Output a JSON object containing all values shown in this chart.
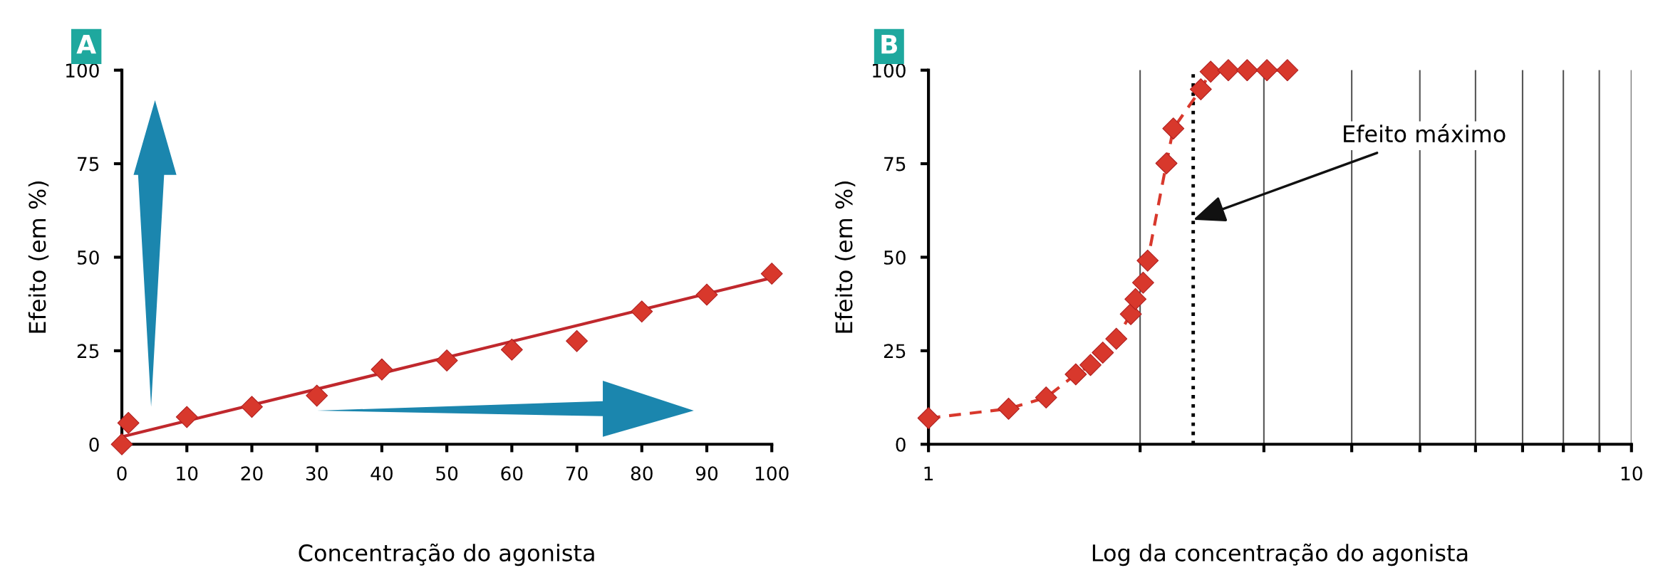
{
  "chart_data": [
    {
      "type": "scatter",
      "title": "A",
      "xlabel": "Concentração do agonista",
      "ylabel": "Efeito (em %)",
      "xlim": [
        0,
        100
      ],
      "xticks": [
        0,
        10,
        20,
        30,
        40,
        50,
        60,
        70,
        80,
        90,
        100
      ],
      "ylim": [
        0,
        100
      ],
      "yticks": [
        0,
        25,
        50,
        75,
        100
      ],
      "marker": "diamond",
      "series": [
        {
          "color": "#d8382c",
          "x": [
            0,
            1,
            10,
            20,
            30,
            40,
            50,
            60,
            70,
            80,
            90,
            100
          ],
          "values": [
            0,
            5.7,
            7.3,
            10,
            13,
            20,
            22.4,
            25.3,
            27.6,
            35.5,
            40,
            45.6
          ]
        },
        {
          "type": "line",
          "marker": "none",
          "line_style": "solid",
          "color": "#c0282d",
          "x": [
            0,
            100
          ],
          "values": [
            2,
            44.5
          ]
        }
      ]
    },
    {
      "type": "line",
      "xlabel": "Log da concentração do agonista",
      "ylabel": "Efeito (em %)",
      "title": "B",
      "log": "x",
      "xlim": [
        1,
        10
      ],
      "xticks": [
        1,
        {
          "value": 2,
          "label": null
        },
        {
          "value": 3,
          "label": null
        },
        {
          "value": 4,
          "label": null
        },
        {
          "value": 5,
          "label": null
        },
        {
          "value": 6,
          "label": null
        },
        {
          "value": 7,
          "label": null
        },
        {
          "value": 8,
          "label": null
        },
        {
          "value": 9,
          "label": null
        },
        10
      ],
      "ylim": [
        0,
        100
      ],
      "yticks": [
        0,
        25,
        50,
        75,
        100
      ],
      "grid": "x",
      "marker": "diamond",
      "line_style": "dashed",
      "series": [
        {
          "color": "#d8382c",
          "x": [
            1,
            1.3,
            1.47,
            1.62,
            1.7,
            1.77,
            1.85,
            1.94,
            1.97,
            2.02,
            2.05,
            2.18,
            2.23,
            2.44,
            2.52,
            2.67,
            2.84,
            3.03,
            3.24
          ],
          "values": [
            7,
            9.5,
            12.5,
            18.7,
            21.2,
            24.5,
            28.2,
            34.8,
            38.8,
            43.2,
            49.1,
            75.1,
            84.4,
            94.9,
            99.6,
            100,
            100,
            100,
            100
          ]
        }
      ],
      "ref_lines": [
        {
          "axis": "x",
          "value": 2.38,
          "color": "#000000",
          "line_style": "dotted"
        }
      ],
      "annotations": [
        {
          "text": "Efeito máximo",
          "x": 2.38,
          "y": 60
        }
      ]
    }
  ]
}
